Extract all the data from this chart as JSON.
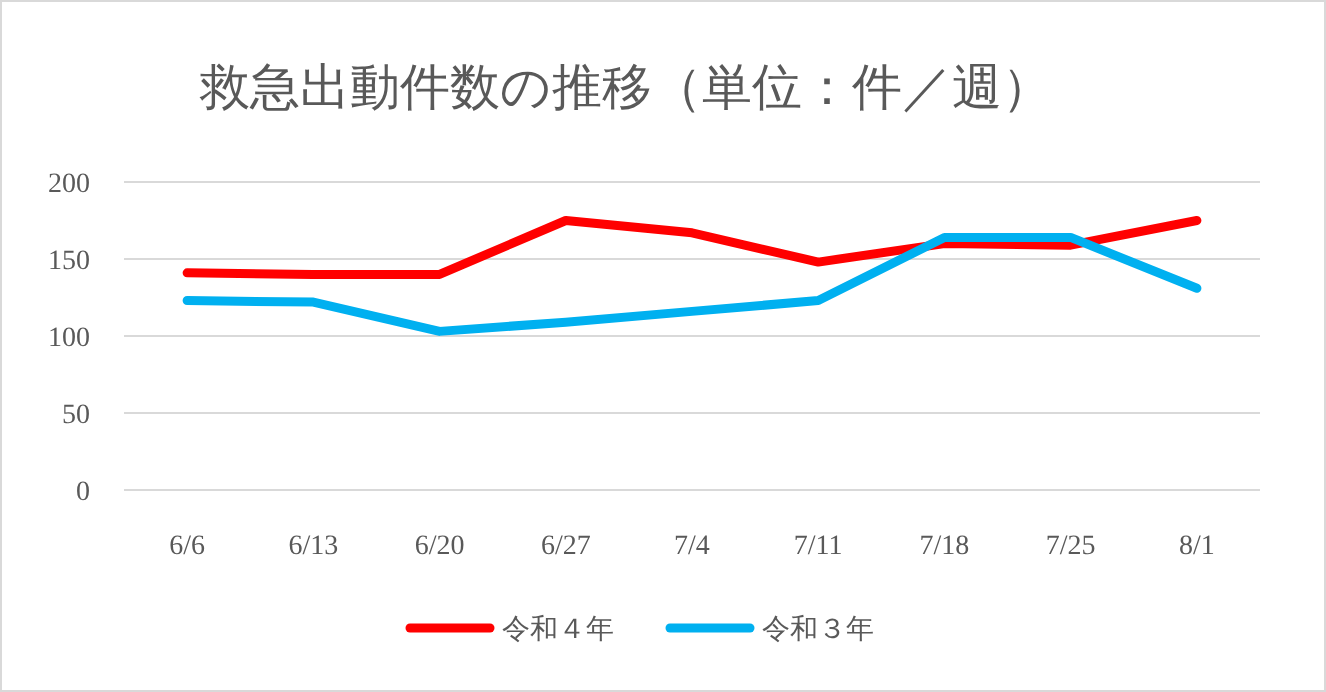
{
  "chart_data": {
    "type": "line",
    "title": "救急出動件数の推移（単位：件／週）",
    "categories": [
      "6/6",
      "6/13",
      "6/20",
      "6/27",
      "7/4",
      "7/11",
      "7/18",
      "7/25",
      "8/1"
    ],
    "series": [
      {
        "name": "令和４年",
        "color": "#ff0000",
        "values": [
          141,
          140,
          140,
          175,
          167,
          148,
          160,
          159,
          175
        ]
      },
      {
        "name": "令和３年",
        "color": "#00b0f0",
        "values": [
          123,
          122,
          103,
          109,
          116,
          123,
          164,
          164,
          131
        ]
      }
    ],
    "ylim": [
      0,
      200
    ],
    "yticks": [
      0,
      50,
      100,
      150,
      200
    ],
    "grid": "y",
    "legend": "bottom",
    "marker": "none",
    "line_style": "solid"
  }
}
